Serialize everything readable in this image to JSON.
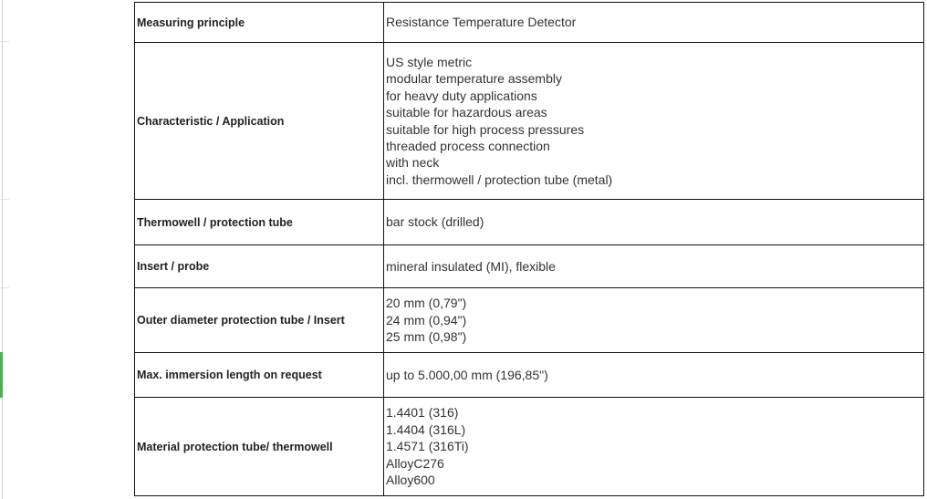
{
  "rows": [
    {
      "label": "Measuring principle",
      "values": [
        "Resistance Temperature Detector"
      ]
    },
    {
      "label": "Characteristic / Application",
      "values": [
        "US style metric",
        "modular temperature assembly",
        "for heavy duty applications",
        "suitable for hazardous areas",
        "suitable for high process pressures",
        "threaded process connection",
        "with neck",
        "incl. thermowell / protection tube (metal)"
      ]
    },
    {
      "label": "Thermowell / protection tube",
      "values": [
        "bar stock (drilled)"
      ]
    },
    {
      "label": "Insert / probe",
      "values": [
        "mineral insulated (MI), flexible"
      ]
    },
    {
      "label": "Outer diameter protection tube / Insert",
      "values": [
        "20 mm (0,79\")",
        "24 mm (0,94\")",
        "25 mm (0,98\")"
      ]
    },
    {
      "label": "Max. immersion length on request",
      "values": [
        "up to 5.000,00 mm (196,85\")"
      ]
    },
    {
      "label": "Material protection tube/ thermowell",
      "values": [
        "1.4401 (316)",
        "1.4404 (316L)",
        "1.4571 (316Ti)",
        "AlloyC276",
        "Alloy600"
      ]
    }
  ],
  "colors": {
    "accent": "#4caf50",
    "border": "#111111"
  }
}
